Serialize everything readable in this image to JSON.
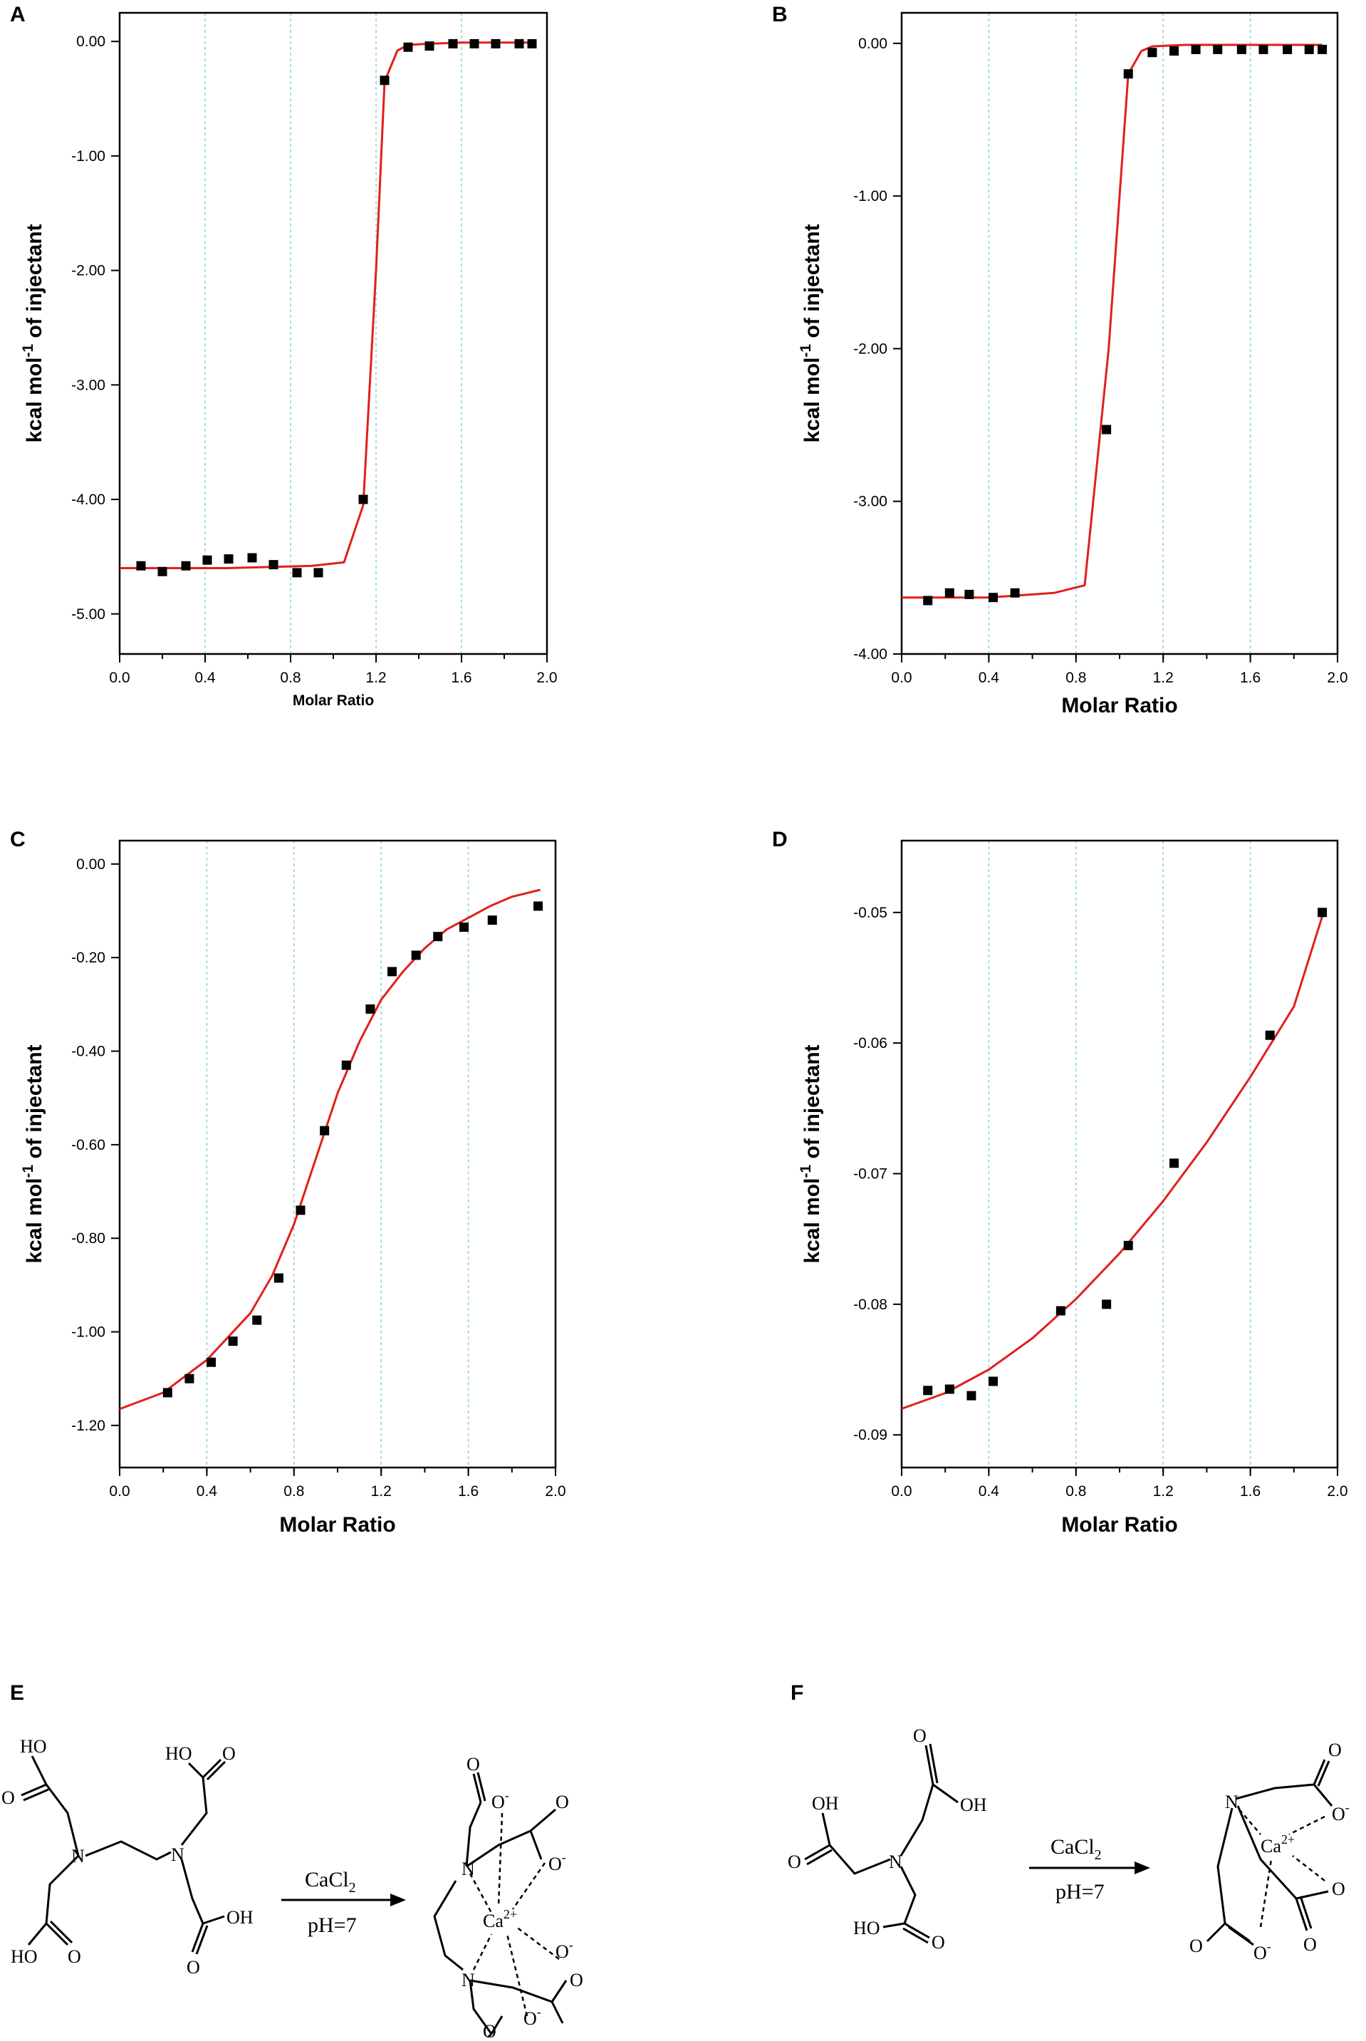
{
  "chart_data": [
    {
      "panel": "A",
      "type": "scatter",
      "ylabel": {
        "main": "kcal mol",
        "sup": "-1",
        "rest": " of injectant"
      },
      "xlabel": "Molar Ratio",
      "xlim": [
        0.0,
        2.0
      ],
      "ylim": [
        -5.35,
        0.25
      ],
      "x_ticks": [
        "0.0",
        "0.4",
        "0.8",
        "1.2",
        "1.6",
        "2.0"
      ],
      "y_ticks": [
        "0.00",
        "-1.00",
        "-2.00",
        "-3.00",
        "-4.00",
        "-5.00"
      ],
      "points_x": [
        0.1,
        0.2,
        0.31,
        0.41,
        0.51,
        0.62,
        0.72,
        0.83,
        0.93,
        1.14,
        1.24,
        1.35,
        1.45,
        1.56,
        1.66,
        1.76,
        1.87,
        1.93
      ],
      "points_y": [
        -4.58,
        -4.63,
        -4.58,
        -4.53,
        -4.52,
        -4.51,
        -4.57,
        -4.64,
        -4.64,
        -4.0,
        -0.34,
        -0.05,
        -0.04,
        -0.02,
        -0.02,
        -0.02,
        -0.02,
        -0.02
      ],
      "fit_x": [
        0.0,
        0.5,
        0.9,
        1.05,
        1.14,
        1.2,
        1.24,
        1.3,
        1.35,
        1.45,
        1.6,
        1.75,
        1.93
      ],
      "fit_y": [
        -4.6,
        -4.6,
        -4.58,
        -4.55,
        -4.05,
        -2.0,
        -0.35,
        -0.08,
        -0.03,
        -0.02,
        -0.01,
        -0.01,
        -0.01
      ]
    },
    {
      "panel": "B",
      "type": "scatter",
      "ylabel": {
        "main": "kcal mol",
        "sup": "-1",
        "rest": " of injectant"
      },
      "xlabel": "Molar Ratio",
      "xlim": [
        0.0,
        2.0
      ],
      "ylim": [
        -4.0,
        0.2
      ],
      "x_ticks": [
        "0.0",
        "0.4",
        "0.8",
        "1.2",
        "1.6",
        "2.0"
      ],
      "y_ticks": [
        "0.00",
        "-1.00",
        "-2.00",
        "-3.00",
        "-4.00"
      ],
      "points_x": [
        0.12,
        0.22,
        0.31,
        0.42,
        0.52,
        0.94,
        1.04,
        1.15,
        1.25,
        1.35,
        1.45,
        1.56,
        1.66,
        1.77,
        1.87,
        1.93
      ],
      "points_y": [
        -3.65,
        -3.6,
        -3.61,
        -3.63,
        -3.6,
        -2.53,
        -0.2,
        -0.06,
        -0.05,
        -0.04,
        -0.04,
        -0.04,
        -0.04,
        -0.04,
        -0.04,
        -0.04
      ],
      "fit_x": [
        0.0,
        0.4,
        0.7,
        0.84,
        0.95,
        1.04,
        1.1,
        1.15,
        1.3,
        1.5,
        1.7,
        1.93
      ],
      "fit_y": [
        -3.63,
        -3.63,
        -3.6,
        -3.55,
        -2.0,
        -0.2,
        -0.05,
        -0.02,
        -0.01,
        -0.01,
        -0.01,
        -0.01
      ]
    },
    {
      "panel": "C",
      "type": "scatter",
      "ylabel": {
        "main": "kcal mol",
        "sup": "-1",
        "rest": " of injectant"
      },
      "xlabel": "Molar Ratio",
      "xlim": [
        0.0,
        2.0
      ],
      "ylim": [
        -1.29,
        0.05
      ],
      "x_ticks": [
        "0.0",
        "0.4",
        "0.8",
        "1.2",
        "1.6",
        "2.0"
      ],
      "y_ticks": [
        "0.00",
        "-0.20",
        "-0.40",
        "-0.60",
        "-0.80",
        "-1.00",
        "-1.20"
      ],
      "points_x": [
        0.22,
        0.32,
        0.42,
        0.52,
        0.63,
        0.73,
        0.83,
        0.94,
        1.04,
        1.15,
        1.25,
        1.36,
        1.46,
        1.58,
        1.71,
        1.92
      ],
      "points_y": [
        -1.13,
        -1.1,
        -1.065,
        -1.02,
        -0.975,
        -0.885,
        -0.74,
        -0.57,
        -0.43,
        -0.31,
        -0.23,
        -0.195,
        -0.155,
        -0.135,
        -0.12,
        -0.09
      ],
      "fit_x": [
        0.0,
        0.2,
        0.4,
        0.6,
        0.7,
        0.8,
        0.9,
        1.0,
        1.1,
        1.2,
        1.3,
        1.4,
        1.5,
        1.6,
        1.7,
        1.8,
        1.93
      ],
      "fit_y": [
        -1.165,
        -1.13,
        -1.06,
        -0.96,
        -0.88,
        -0.77,
        -0.63,
        -0.49,
        -0.38,
        -0.29,
        -0.23,
        -0.18,
        -0.14,
        -0.115,
        -0.09,
        -0.07,
        -0.055
      ]
    },
    {
      "panel": "D",
      "type": "scatter",
      "ylabel": {
        "main": "kcal mol",
        "sup": "-1",
        "rest": " of injectant"
      },
      "xlabel": "Molar Ratio",
      "xlim": [
        0.0,
        2.0
      ],
      "ylim": [
        -0.0925,
        -0.0445
      ],
      "x_ticks": [
        "0.0",
        "0.4",
        "0.8",
        "1.2",
        "1.6",
        "2.0"
      ],
      "y_ticks": [
        "-0.05",
        "-0.06",
        "-0.07",
        "-0.08",
        "-0.09"
      ],
      "points_x": [
        0.12,
        0.22,
        0.32,
        0.42,
        0.73,
        0.94,
        1.04,
        1.25,
        1.69,
        1.93
      ],
      "points_y": [
        -0.0866,
        -0.0865,
        -0.087,
        -0.0859,
        -0.0805,
        -0.08,
        -0.0755,
        -0.0692,
        -0.0594,
        -0.05
      ],
      "fit_x": [
        0.0,
        0.2,
        0.4,
        0.6,
        0.8,
        1.0,
        1.2,
        1.4,
        1.6,
        1.8,
        1.93
      ],
      "fit_y": [
        -0.088,
        -0.0868,
        -0.085,
        -0.0826,
        -0.0796,
        -0.0761,
        -0.0721,
        -0.0676,
        -0.0626,
        -0.0572,
        -0.0503
      ]
    }
  ],
  "panels": {
    "E": {
      "letter": "E",
      "reagent": "CaCl",
      "reagent_sub": "2",
      "condition": "pH=7"
    },
    "F": {
      "letter": "F",
      "reagent": "CaCl",
      "reagent_sub": "2",
      "condition": "pH=7"
    }
  },
  "chem_labels": {
    "ho": "HO",
    "oh": "OH",
    "o": "O",
    "n": "N",
    "ca": "Ca",
    "ca_charge": "2+",
    "minus": "-"
  },
  "colors": {
    "fit_line": "#e0201b",
    "marker": "#000000",
    "grid": "#8fd3d3"
  }
}
